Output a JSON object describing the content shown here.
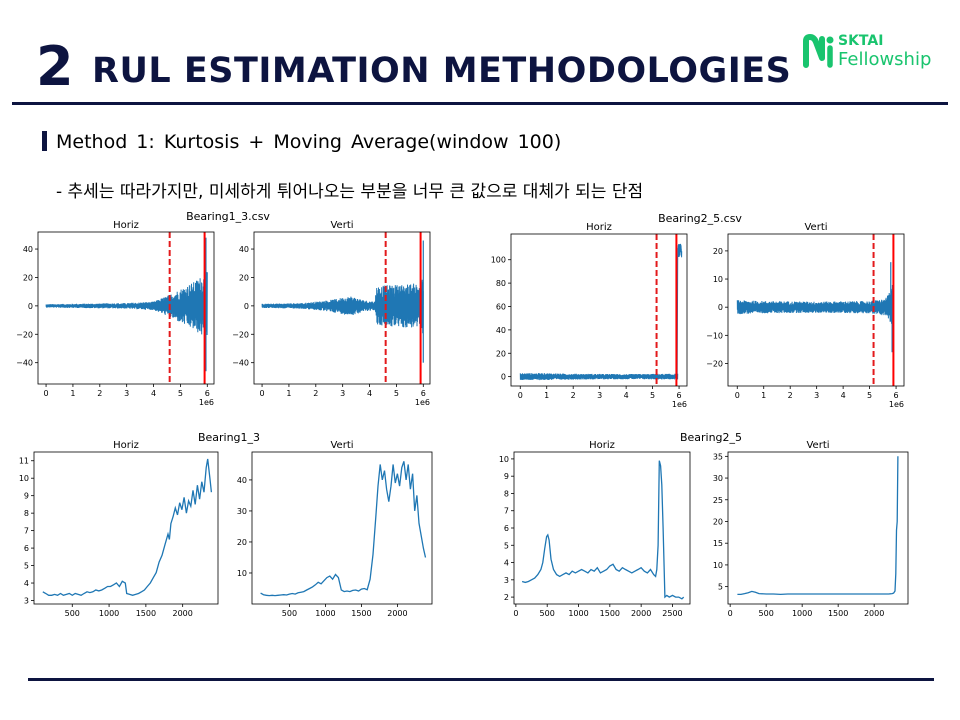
{
  "header": {
    "section_number": "2",
    "title": "RUL ESTIMATION METHODOLOGIES",
    "logo_brand": "SKTAI",
    "logo_sub": "Fellowship"
  },
  "method": {
    "label": "Method 1: Kurtosis + Moving Average(window 100)",
    "description": "- 추세는 따라가지만, 미세하게 튀어나오는 부분을 너무 큰 값으로 대체가 되는 단점"
  },
  "colors": {
    "accent": "#0d1440",
    "brand_green": "#19c46e",
    "series": "#1f77b4",
    "failure_line": "#ff0000",
    "threshold_line": "#e31a1c"
  },
  "figures": [
    {
      "suptitle": "Bearing1_3.csv",
      "panels": [
        0,
        1
      ]
    },
    {
      "suptitle": "Bearing2_5.csv",
      "panels": [
        2,
        3
      ]
    },
    {
      "suptitle": "Bearing1_3",
      "panels": [
        4,
        5
      ]
    },
    {
      "suptitle": "Bearing2_5",
      "panels": [
        6,
        7
      ]
    }
  ],
  "chart_data": [
    {
      "type": "line",
      "title": "Horiz",
      "figure": "Bearing1_3.csv",
      "xlim": [
        -0.3,
        6.25
      ],
      "ylim": [
        -55,
        52
      ],
      "xticks": [
        0,
        1,
        2,
        3,
        4,
        5,
        6
      ],
      "yticks": [
        -40,
        -20,
        0,
        20,
        40
      ],
      "x_multiplier": "1e6",
      "series": [
        {
          "name": "raw vibration",
          "shape": "vibration",
          "x_end": 6.0,
          "envelope": [
            [
              0,
              1.2
            ],
            [
              3.0,
              2.0
            ],
            [
              4.0,
              3.0
            ],
            [
              4.5,
              7.0
            ],
            [
              5.0,
              12.0
            ],
            [
              5.5,
              17.0
            ],
            [
              5.85,
              22.0
            ],
            [
              6.0,
              24.0
            ]
          ],
          "spikes": [
            [
              5.95,
              48
            ],
            [
              5.95,
              -46
            ]
          ]
        }
      ],
      "vlines": [
        {
          "x": 4.6,
          "style": "dashed",
          "meaning": "threshold"
        },
        {
          "x": 5.9,
          "style": "solid",
          "meaning": "failure"
        }
      ]
    },
    {
      "type": "line",
      "title": "Verti",
      "figure": "Bearing1_3.csv",
      "xlim": [
        -0.3,
        6.25
      ],
      "ylim": [
        -55,
        52
      ],
      "xticks": [
        0,
        1,
        2,
        3,
        4,
        5,
        6
      ],
      "yticks": [
        -40,
        -20,
        0,
        20,
        40
      ],
      "x_multiplier": "1e6",
      "series": [
        {
          "name": "raw vibration",
          "shape": "vibration",
          "x_end": 6.0,
          "envelope": [
            [
              0,
              1.5
            ],
            [
              1.5,
              2.0
            ],
            [
              2.5,
              4.0
            ],
            [
              3.3,
              7.0
            ],
            [
              3.8,
              4.0
            ],
            [
              4.2,
              3.0
            ],
            [
              4.25,
              14.0
            ],
            [
              5.0,
              15.0
            ],
            [
              5.8,
              16.0
            ],
            [
              6.0,
              20.0
            ]
          ],
          "spikes": [
            [
              6.0,
              46
            ],
            [
              6.0,
              -40
            ]
          ]
        }
      ],
      "vlines": [
        {
          "x": 4.6,
          "style": "dashed",
          "meaning": "threshold"
        },
        {
          "x": 5.9,
          "style": "solid",
          "meaning": "failure"
        }
      ]
    },
    {
      "type": "line",
      "title": "Horiz",
      "figure": "Bearing2_5.csv",
      "xlim": [
        -0.35,
        6.3
      ],
      "ylim": [
        -8,
        122
      ],
      "xticks": [
        0,
        1,
        2,
        3,
        4,
        5,
        6
      ],
      "yticks": [
        0,
        20,
        40,
        60,
        80,
        100
      ],
      "x_multiplier": "1e6",
      "series": [
        {
          "name": "raw vibration",
          "shape": "vibration",
          "x_end": 5.95,
          "envelope": [
            [
              0,
              3.0
            ],
            [
              1.0,
              3.0
            ],
            [
              2.0,
              2.5
            ],
            [
              4.0,
              2.2
            ],
            [
              5.9,
              2.5
            ]
          ],
          "jump": {
            "x_start": 5.95,
            "x_end": 6.1,
            "low": 102,
            "high": 114
          }
        }
      ],
      "vlines": [
        {
          "x": 5.15,
          "style": "dashed",
          "meaning": "threshold"
        },
        {
          "x": 5.9,
          "style": "solid",
          "meaning": "failure"
        }
      ]
    },
    {
      "type": "line",
      "title": "Verti",
      "figure": "Bearing2_5.csv",
      "xlim": [
        -0.35,
        6.3
      ],
      "ylim": [
        -28,
        26
      ],
      "xticks": [
        0,
        1,
        2,
        3,
        4,
        5,
        6
      ],
      "yticks": [
        -20,
        -10,
        0,
        10,
        20
      ],
      "x_multiplier": "1e6",
      "series": [
        {
          "name": "raw vibration",
          "shape": "vibration",
          "x_end": 5.9,
          "envelope": [
            [
              0,
              2.5
            ],
            [
              1.0,
              2.2
            ],
            [
              3.0,
              2.0
            ],
            [
              5.0,
              2.2
            ],
            [
              5.6,
              3.0
            ],
            [
              5.8,
              6.0
            ],
            [
              5.9,
              10.0
            ]
          ],
          "spikes": [
            [
              5.8,
              16
            ],
            [
              5.85,
              -16
            ]
          ]
        }
      ],
      "vlines": [
        {
          "x": 5.15,
          "style": "dashed",
          "meaning": "threshold"
        },
        {
          "x": 5.9,
          "style": "solid",
          "meaning": "failure"
        }
      ]
    },
    {
      "type": "line",
      "title": "Horiz",
      "figure": "Bearing1_3",
      "xlim": [
        -20,
        2480
      ],
      "ylim": [
        2.8,
        11.5
      ],
      "xticks": [
        500,
        1000,
        1500,
        2000
      ],
      "yticks": [
        3,
        4,
        5,
        6,
        7,
        8,
        9,
        10,
        11
      ],
      "series": [
        {
          "name": "kurtosis moving average",
          "x": [
            100,
            140,
            180,
            220,
            260,
            300,
            340,
            380,
            420,
            460,
            500,
            540,
            580,
            620,
            660,
            700,
            740,
            780,
            820,
            860,
            900,
            940,
            980,
            1020,
            1060,
            1100,
            1140,
            1180,
            1220,
            1240,
            1280,
            1320,
            1360,
            1400,
            1440,
            1480,
            1520,
            1560,
            1600,
            1640,
            1680,
            1720,
            1760,
            1800,
            1820,
            1840,
            1870,
            1900,
            1930,
            1960,
            1990,
            2020,
            2050,
            2080,
            2110,
            2140,
            2170,
            2200,
            2230,
            2260,
            2290,
            2320,
            2340,
            2370,
            2390
          ],
          "y": [
            3.5,
            3.4,
            3.3,
            3.3,
            3.35,
            3.3,
            3.4,
            3.3,
            3.35,
            3.4,
            3.3,
            3.4,
            3.35,
            3.3,
            3.4,
            3.5,
            3.45,
            3.5,
            3.6,
            3.55,
            3.6,
            3.7,
            3.8,
            3.8,
            3.9,
            4.0,
            3.8,
            4.1,
            4.0,
            3.4,
            3.35,
            3.3,
            3.35,
            3.4,
            3.5,
            3.6,
            3.8,
            4.0,
            4.3,
            4.6,
            5.2,
            5.6,
            6.2,
            6.8,
            6.5,
            7.4,
            7.8,
            8.3,
            7.9,
            8.6,
            8.2,
            8.9,
            8.0,
            8.7,
            8.4,
            9.3,
            8.5,
            9.6,
            8.8,
            9.8,
            9.2,
            10.6,
            11.1,
            10.0,
            9.2
          ]
        }
      ]
    },
    {
      "type": "line",
      "title": "Verti",
      "figure": "Bearing1_3",
      "xlim": [
        -20,
        2480
      ],
      "ylim": [
        0,
        49
      ],
      "xticks": [
        500,
        1000,
        1500,
        2000
      ],
      "yticks": [
        10,
        20,
        30,
        40
      ],
      "series": [
        {
          "name": "kurtosis moving average",
          "x": [
            100,
            140,
            180,
            220,
            260,
            300,
            340,
            380,
            420,
            460,
            500,
            540,
            580,
            620,
            660,
            700,
            740,
            780,
            820,
            860,
            900,
            940,
            980,
            1020,
            1060,
            1100,
            1140,
            1180,
            1220,
            1260,
            1300,
            1340,
            1380,
            1420,
            1460,
            1500,
            1540,
            1580,
            1620,
            1660,
            1700,
            1730,
            1760,
            1790,
            1820,
            1850,
            1880,
            1910,
            1940,
            1970,
            2000,
            2030,
            2060,
            2090,
            2120,
            2150,
            2180,
            2210,
            2240,
            2270,
            2300,
            2330,
            2360,
            2390
          ],
          "y": [
            3.5,
            3.0,
            2.8,
            2.7,
            2.8,
            2.7,
            2.8,
            2.9,
            3.0,
            2.9,
            3.2,
            3.4,
            3.2,
            3.6,
            3.8,
            4.0,
            4.5,
            5.0,
            5.5,
            6.2,
            7.0,
            6.5,
            7.5,
            8.5,
            9.0,
            8.0,
            9.5,
            8.5,
            4.5,
            4.0,
            4.2,
            4.0,
            4.4,
            4.5,
            4.2,
            4.8,
            5.0,
            4.6,
            8.0,
            16.0,
            28.0,
            38.0,
            45.0,
            40.0,
            43.0,
            37.0,
            33.0,
            38.0,
            45.0,
            39.0,
            42.0,
            38.0,
            44.0,
            46.0,
            40.0,
            45.0,
            37.0,
            42.0,
            30.0,
            35.0,
            26.0,
            22.0,
            18.0,
            15.0
          ]
        }
      ]
    },
    {
      "type": "line",
      "title": "Horiz",
      "figure": "Bearing2_5",
      "xlim": [
        -30,
        2780
      ],
      "ylim": [
        1.6,
        10.4
      ],
      "xticks": [
        0,
        500,
        1000,
        1500,
        2000,
        2500
      ],
      "yticks": [
        2,
        3,
        4,
        5,
        6,
        7,
        8,
        9,
        10
      ],
      "series": [
        {
          "name": "kurtosis moving average",
          "x": [
            100,
            150,
            200,
            250,
            300,
            350,
            400,
            430,
            460,
            490,
            510,
            530,
            560,
            600,
            650,
            700,
            750,
            800,
            850,
            900,
            950,
            1000,
            1050,
            1100,
            1150,
            1200,
            1250,
            1300,
            1350,
            1400,
            1450,
            1500,
            1550,
            1600,
            1650,
            1700,
            1750,
            1800,
            1850,
            1900,
            1950,
            2000,
            2050,
            2100,
            2150,
            2200,
            2230,
            2250,
            2270,
            2290,
            2310,
            2330,
            2350,
            2380,
            2410,
            2450,
            2500,
            2550,
            2600,
            2650,
            2680
          ],
          "y": [
            2.9,
            2.85,
            2.9,
            3.0,
            3.1,
            3.3,
            3.6,
            4.0,
            4.8,
            5.5,
            5.6,
            5.3,
            4.2,
            3.6,
            3.3,
            3.2,
            3.3,
            3.4,
            3.3,
            3.5,
            3.4,
            3.5,
            3.6,
            3.5,
            3.4,
            3.6,
            3.5,
            3.7,
            3.4,
            3.5,
            3.6,
            3.8,
            3.9,
            3.6,
            3.5,
            3.7,
            3.6,
            3.5,
            3.4,
            3.5,
            3.6,
            3.7,
            3.5,
            3.4,
            3.6,
            3.3,
            3.2,
            3.6,
            5.0,
            9.9,
            9.6,
            8.5,
            6.0,
            2.0,
            2.1,
            2.0,
            2.1,
            2.0,
            2.0,
            1.9,
            2.0
          ]
        }
      ]
    },
    {
      "type": "line",
      "title": "Verti",
      "figure": "Bearing2_5",
      "xlim": [
        -30,
        2470
      ],
      "ylim": [
        1.0,
        36.0
      ],
      "xticks": [
        0,
        500,
        1000,
        1500,
        2000
      ],
      "yticks": [
        5,
        10,
        15,
        20,
        25,
        30,
        35
      ],
      "series": [
        {
          "name": "kurtosis moving average",
          "x": [
            100,
            150,
            200,
            250,
            300,
            350,
            400,
            500,
            600,
            700,
            800,
            900,
            1000,
            1100,
            1200,
            1300,
            1400,
            1500,
            1600,
            1700,
            1800,
            1900,
            2000,
            2100,
            2200,
            2250,
            2270,
            2290,
            2300,
            2310,
            2320,
            2330
          ],
          "y": [
            3.2,
            3.2,
            3.4,
            3.6,
            3.9,
            3.7,
            3.4,
            3.3,
            3.3,
            3.2,
            3.3,
            3.3,
            3.3,
            3.3,
            3.3,
            3.3,
            3.3,
            3.3,
            3.3,
            3.3,
            3.3,
            3.3,
            3.3,
            3.3,
            3.3,
            3.4,
            3.5,
            4.0,
            8.0,
            18.0,
            20.0,
            35.0
          ]
        }
      ]
    }
  ]
}
